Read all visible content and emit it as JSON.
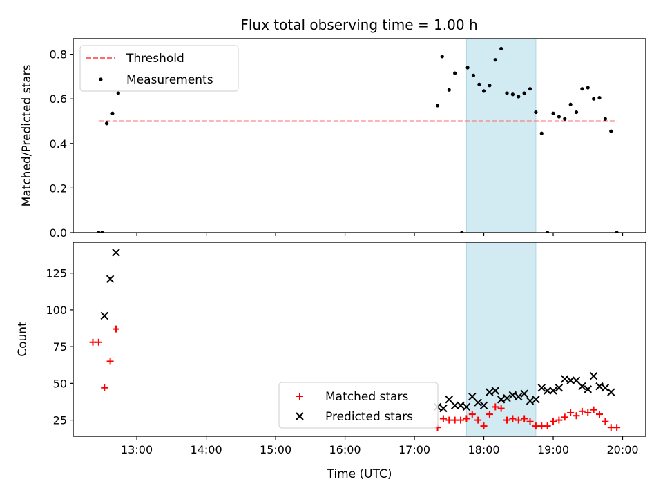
{
  "figure": {
    "title": "Flux total observing time = 1.00 h"
  },
  "chart_data": [
    {
      "type": "scatter",
      "panel": "top",
      "ylabel": "Matched/Predicted stars",
      "xlabel": "",
      "xlim": [
        "12:05",
        "20:20"
      ],
      "ylim": [
        0,
        0.87
      ],
      "yticks": [
        0.0,
        0.2,
        0.4,
        0.6,
        0.8
      ],
      "ytick_labels": [
        "0.0",
        "0.2",
        "0.4",
        "0.6",
        "0.8"
      ],
      "xticks": [
        "13:00",
        "14:00",
        "15:00",
        "16:00",
        "17:00",
        "18:00",
        "19:00",
        "20:00"
      ],
      "shaded_span": {
        "start": "17:45",
        "end": "18:45",
        "color": "#add8e6"
      },
      "legend": {
        "placement": "top-left",
        "entries": [
          "Threshold",
          "Measurements"
        ]
      },
      "threshold": {
        "name": "Threshold",
        "y": 0.5,
        "x_start": "12:27",
        "x_end": "19:55",
        "color": "#ff6b6b",
        "style": "dashed"
      },
      "series": [
        {
          "name": "Measurements",
          "color": "#000000",
          "marker": "dot",
          "x": [
            "12:27",
            "12:30",
            "12:34",
            "12:39",
            "12:44",
            "17:20",
            "17:24",
            "17:30",
            "17:35",
            "17:41",
            "17:46",
            "17:51",
            "17:56",
            "18:00",
            "18:05",
            "18:10",
            "18:15",
            "18:20",
            "18:25",
            "18:30",
            "18:35",
            "18:40",
            "18:45",
            "18:50",
            "18:55",
            "19:00",
            "19:05",
            "19:10",
            "19:15",
            "19:20",
            "19:25",
            "19:30",
            "19:35",
            "19:40",
            "19:45",
            "19:50",
            "19:55"
          ],
          "y": [
            0.0,
            0.0,
            0.49,
            0.535,
            0.625,
            0.57,
            0.79,
            0.64,
            0.715,
            0.0,
            0.74,
            0.705,
            0.665,
            0.635,
            0.66,
            0.775,
            0.825,
            0.625,
            0.62,
            0.61,
            0.625,
            0.645,
            0.54,
            0.445,
            0.0,
            0.535,
            0.52,
            0.51,
            0.575,
            0.54,
            0.645,
            0.65,
            0.6,
            0.605,
            0.51,
            0.455,
            0.0
          ]
        }
      ]
    },
    {
      "type": "scatter",
      "panel": "bottom",
      "ylabel": "Count",
      "xlabel": "Time (UTC)",
      "xlim": [
        "12:05",
        "20:20"
      ],
      "ylim": [
        14,
        146
      ],
      "yticks": [
        25,
        50,
        75,
        100,
        125
      ],
      "ytick_labels": [
        "25",
        "50",
        "75",
        "100",
        "125"
      ],
      "xticks": [
        "13:00",
        "14:00",
        "15:00",
        "16:00",
        "17:00",
        "18:00",
        "19:00",
        "20:00"
      ],
      "xtick_labels": [
        "13:00",
        "14:00",
        "15:00",
        "16:00",
        "17:00",
        "18:00",
        "19:00",
        "20:00"
      ],
      "shaded_span": {
        "start": "17:45",
        "end": "18:45",
        "color": "#add8e6"
      },
      "legend": {
        "placement": "bottom-center",
        "entries": [
          "Matched stars",
          "Predicted stars"
        ]
      },
      "series": [
        {
          "name": "Matched stars",
          "color": "#ff0000",
          "marker": "plus",
          "x": [
            "12:22",
            "12:27",
            "12:32",
            "12:37",
            "12:42",
            "17:20",
            "17:25",
            "17:30",
            "17:35",
            "17:40",
            "17:45",
            "17:50",
            "17:55",
            "18:00",
            "18:05",
            "18:10",
            "18:15",
            "18:20",
            "18:25",
            "18:30",
            "18:35",
            "18:40",
            "18:45",
            "18:50",
            "18:55",
            "19:00",
            "19:05",
            "19:10",
            "19:15",
            "19:20",
            "19:25",
            "19:30",
            "19:35",
            "19:40",
            "19:45",
            "19:50",
            "19:55"
          ],
          "y": [
            78,
            78,
            47,
            65,
            87,
            20,
            26,
            25,
            25,
            25,
            26,
            29,
            25,
            21,
            29,
            34,
            33,
            25,
            26,
            25,
            26,
            24,
            21,
            21,
            21,
            24,
            25,
            27,
            30,
            28,
            31,
            30,
            32,
            29,
            24,
            20,
            20
          ]
        },
        {
          "name": "Predicted stars",
          "color": "#000000",
          "marker": "x",
          "x": [
            "12:32",
            "12:37",
            "12:42",
            "17:20",
            "17:25",
            "17:30",
            "17:35",
            "17:40",
            "17:45",
            "17:50",
            "17:55",
            "18:00",
            "18:05",
            "18:10",
            "18:15",
            "18:20",
            "18:25",
            "18:30",
            "18:35",
            "18:40",
            "18:45",
            "18:50",
            "18:55",
            "19:00",
            "19:05",
            "19:10",
            "19:15",
            "19:20",
            "19:25",
            "19:30",
            "19:35",
            "19:40",
            "19:45",
            "19:50"
          ],
          "y": [
            96,
            121,
            139,
            34,
            33,
            39,
            35,
            35,
            34,
            41,
            37,
            35,
            44,
            45,
            39,
            40,
            42,
            41,
            43,
            38,
            39,
            47,
            45,
            45,
            47,
            53,
            52,
            52,
            48,
            46,
            55,
            48,
            47,
            44
          ]
        }
      ]
    }
  ]
}
